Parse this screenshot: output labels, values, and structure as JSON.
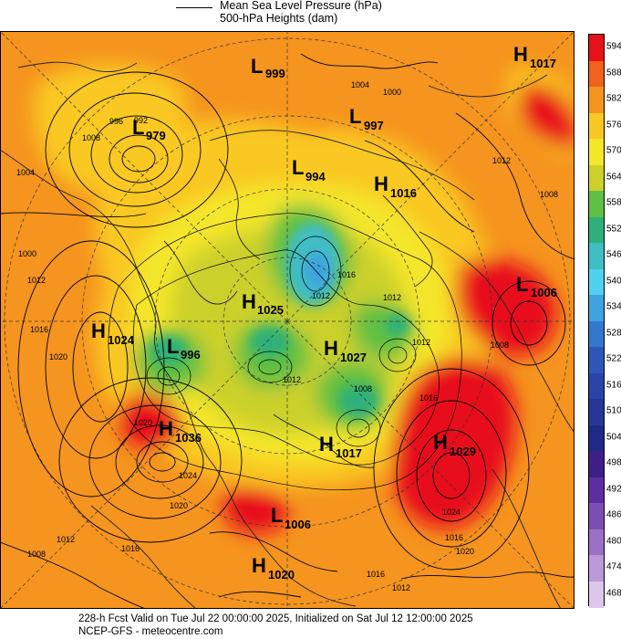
{
  "legend": {
    "line_item": "Mean Sea Level Pressure (hPa)",
    "heights_item": "500-hPa Heights (dam)"
  },
  "footer": {
    "valid_line": "228-h Fcst Valid on Tue Jul 22 00:00:00 2025, Initialized on Sat Jul 12 12:00:00 2025",
    "source_line": "NCEP-GFS  - meteocentre.com"
  },
  "colorbar": {
    "levels": [
      "594",
      "588",
      "582",
      "576",
      "570",
      "564",
      "558",
      "552",
      "546",
      "540",
      "534",
      "528",
      "522",
      "516",
      "510",
      "504",
      "498",
      "492",
      "486",
      "480",
      "474",
      "468"
    ],
    "colors": [
      "#e8111a",
      "#f2611d",
      "#f5941e",
      "#f9c823",
      "#f4e629",
      "#ccd02a",
      "#60c043",
      "#2fb07a",
      "#3fbec4",
      "#4fd1f0",
      "#41a3e0",
      "#3478cc",
      "#2f57b6",
      "#2a44a6",
      "#263797",
      "#1f2a86",
      "#3d1f86",
      "#5e2ea0",
      "#7d4eb2",
      "#9b70c6",
      "#bb98d8",
      "#dcc7ea"
    ]
  },
  "map": {
    "pressure_centers": [
      {
        "type": "L",
        "value": "999"
      },
      {
        "type": "H",
        "value": "1017"
      },
      {
        "type": "L",
        "value": "979"
      },
      {
        "type": "L",
        "value": "997"
      },
      {
        "type": "L",
        "value": "994"
      },
      {
        "type": "H",
        "value": "1016"
      },
      {
        "type": "H",
        "value": "1025"
      },
      {
        "type": "L",
        "value": "1006"
      },
      {
        "type": "H",
        "value": "1024"
      },
      {
        "type": "L",
        "value": "996"
      },
      {
        "type": "H",
        "value": "1027"
      },
      {
        "type": "H",
        "value": "1036"
      },
      {
        "type": "H",
        "value": "1029"
      },
      {
        "type": "H",
        "value": "1017"
      },
      {
        "type": "L",
        "value": "1006"
      },
      {
        "type": "H",
        "value": "1020"
      }
    ],
    "isobar_labels": [
      "1004",
      "1000",
      "996",
      "992",
      "1004",
      "1000",
      "1008",
      "1012",
      "1016",
      "1020",
      "1016",
      "1012",
      "1020",
      "1024",
      "1020",
      "1016",
      "1012",
      "1008",
      "1016",
      "1012",
      "1012",
      "1016",
      "1008",
      "1020",
      "1024",
      "1016",
      "1012",
      "1012",
      "1008",
      "1008",
      "1012"
    ]
  }
}
